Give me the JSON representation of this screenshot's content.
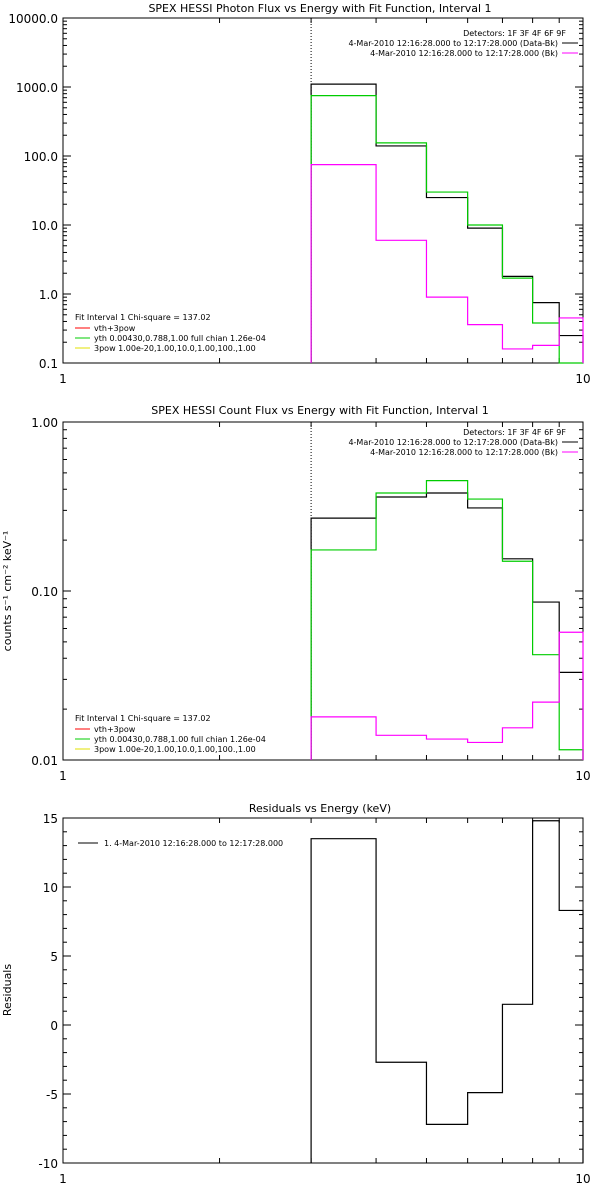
{
  "chart_data": [
    {
      "type": "line",
      "title": "SPEX HESSI Photon Flux vs Energy with Fit Function, Interval 1",
      "xscale": "log",
      "yscale": "log",
      "xlim": [
        1,
        10
      ],
      "ylim": [
        0.1,
        10000
      ],
      "xticks": [
        "1",
        "10"
      ],
      "yticks": [
        "0.1",
        "1.0",
        "10.0",
        "100.0",
        "1000.0",
        "10000.0"
      ],
      "vline_x": 3,
      "legend_header": "Detectors: 1F 3F 4F 6F 9F",
      "legend_lines": [
        "4-Mar-2010 12:16:28.000 to 12:17:28.000 (Data-Bk)",
        "4-Mar-2010 12:16:28.000 to 12:17:28.000 (Bk)"
      ],
      "fit_legend_title": "Fit Interval 1    Chi-square = 137.02",
      "fit_legend": [
        {
          "label": "vth+3pow",
          "color": "#ff0000"
        },
        {
          "label": "yth 0.00430,0.788,1.00  full chian 1.26e-04",
          "color": "#00cc00"
        },
        {
          "label": "3pow 1.00e-20,1.00,10.0,1.00,100.,1.00",
          "color": "#e0e000"
        }
      ],
      "bin_edges": [
        3,
        4,
        5,
        6,
        7,
        8,
        9,
        10
      ],
      "series": [
        {
          "color": "#000000",
          "values": [
            1100,
            140,
            25,
            9,
            1.8,
            0.75,
            0.25
          ]
        },
        {
          "color": "#00cc00",
          "values": [
            750,
            155,
            30,
            10,
            1.7,
            0.38,
            0.1
          ]
        },
        {
          "color": "#ff00ff",
          "values": [
            75,
            6,
            0.9,
            0.36,
            0.16,
            0.18,
            0.45
          ]
        }
      ]
    },
    {
      "type": "line",
      "title": "SPEX HESSI Count Flux vs Energy with Fit Function, Interval 1",
      "ylabel": "counts s⁻¹ cm⁻² keV⁻¹",
      "xscale": "log",
      "yscale": "log",
      "xlim": [
        1,
        10
      ],
      "ylim": [
        0.01,
        1.0
      ],
      "xticks": [
        "1",
        "10"
      ],
      "yticks": [
        "0.01",
        "0.10",
        "1.00"
      ],
      "vline_x": 3,
      "legend_header": "Detectors: 1F 3F 4F 6F 9F",
      "legend_lines": [
        "4-Mar-2010 12:16:28.000 to 12:17:28.000 (Data-Bk)",
        "4-Mar-2010 12:16:28.000 to 12:17:28.000 (Bk)"
      ],
      "fit_legend_title": "Fit Interval 1    Chi-square = 137.02",
      "fit_legend": [
        {
          "label": "vth+3pow",
          "color": "#ff0000"
        },
        {
          "label": "yth 0.00430,0.788,1.00  full chian 1.26e-04",
          "color": "#00cc00"
        },
        {
          "label": "3pow 1.00e-20,1.00,10.0,1.00,100.,1.00",
          "color": "#e0e000"
        }
      ],
      "bin_edges": [
        3,
        4,
        5,
        6,
        7,
        8,
        9,
        10
      ],
      "series": [
        {
          "color": "#000000",
          "values": [
            0.27,
            0.36,
            0.38,
            0.31,
            0.155,
            0.086,
            0.033
          ]
        },
        {
          "color": "#00cc00",
          "values": [
            0.175,
            0.38,
            0.45,
            0.35,
            0.15,
            0.042,
            0.0115
          ]
        },
        {
          "color": "#ff00ff",
          "values": [
            0.018,
            0.014,
            0.0133,
            0.0127,
            0.0155,
            0.022,
            0.057
          ]
        }
      ]
    },
    {
      "type": "line",
      "title": "Residuals vs Energy (keV)",
      "ylabel": "Residuals",
      "xscale": "log",
      "yscale": "linear",
      "xlim": [
        1,
        10
      ],
      "ylim": [
        -10,
        15
      ],
      "xticks": [
        "1",
        "10"
      ],
      "yticks": [
        "-10",
        "-5",
        "0",
        "5",
        "10",
        "15"
      ],
      "legend_lines": [
        "1.  4-Mar-2010 12:16:28.000 to 12:17:28.000"
      ],
      "bin_edges": [
        3,
        4,
        5,
        6,
        7,
        8,
        9,
        10
      ],
      "series": [
        {
          "color": "#000000",
          "values": [
            13.5,
            -2.7,
            -7.2,
            -4.9,
            1.5,
            14.8,
            8.3
          ]
        }
      ]
    }
  ]
}
